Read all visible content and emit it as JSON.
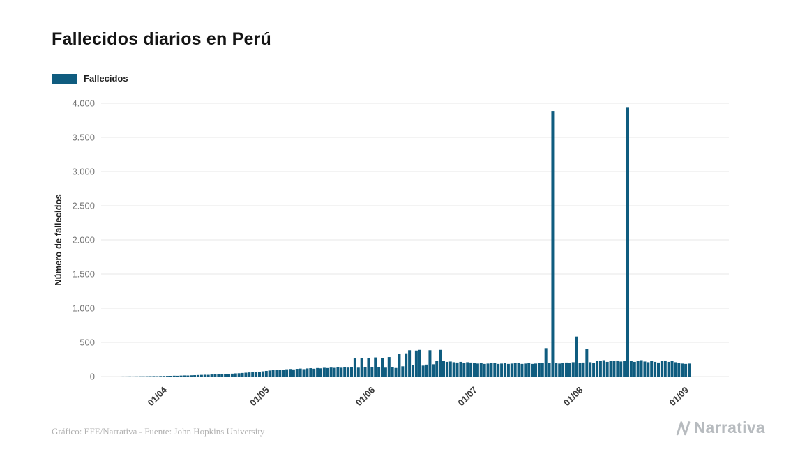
{
  "page": {
    "title": "Fallecidos diarios en Perú",
    "footer_credit": "Gráfico: EFE/Narrativa - Fuente: John Hopkins University",
    "brand": "Narrativa"
  },
  "legend": {
    "label": "Fallecidos",
    "color": "#0f5c7f"
  },
  "chart_data": {
    "type": "bar",
    "title": "Fallecidos diarios en Perú",
    "xlabel": "",
    "ylabel": "Número de fallecidos",
    "ylim": [
      0,
      4000
    ],
    "grid": "horizontal",
    "legend_position": "top-left",
    "bar_color": "#0f5c7f",
    "y_tick_values": [
      0,
      500,
      1000,
      1500,
      2000,
      2500,
      3000,
      3500,
      4000
    ],
    "y_tick_labels": [
      "0",
      "500",
      "1.000",
      "1.500",
      "2.000",
      "2.500",
      "3.000",
      "3.500",
      "4.000"
    ],
    "x_tick_labels": [
      "01/04",
      "01/05",
      "01/06",
      "01/07",
      "01/08",
      "01/09"
    ],
    "x_tick_dates": [
      "2020-04-01",
      "2020-05-01",
      "2020-06-01",
      "2020-07-01",
      "2020-08-01",
      "2020-09-01"
    ],
    "start_date": "2020-03-19",
    "frequency": "daily",
    "series": [
      {
        "name": "Fallecidos",
        "values": [
          1,
          1,
          2,
          1,
          2,
          3,
          3,
          4,
          5,
          6,
          5,
          7,
          8,
          9,
          10,
          12,
          11,
          14,
          16,
          15,
          18,
          20,
          22,
          24,
          26,
          25,
          30,
          32,
          35,
          37,
          34,
          40,
          42,
          46,
          48,
          52,
          56,
          60,
          63,
          66,
          70,
          76,
          82,
          88,
          94,
          98,
          102,
          96,
          106,
          110,
          104,
          112,
          116,
          108,
          118,
          122,
          114,
          124,
          120,
          128,
          124,
          131,
          127,
          133,
          129,
          136,
          131,
          139,
          265,
          130,
          270,
          135,
          275,
          140,
          280,
          140,
          275,
          130,
          285,
          135,
          125,
          330,
          150,
          340,
          385,
          170,
          380,
          390,
          160,
          175,
          385,
          180,
          230,
          390,
          225,
          215,
          220,
          210,
          205,
          215,
          200,
          210,
          205,
          200,
          190,
          195,
          185,
          190,
          200,
          195,
          185,
          190,
          195,
          185,
          190,
          200,
          195,
          185,
          190,
          195,
          185,
          190,
          200,
          195,
          415,
          200,
          3887,
          195,
          190,
          200,
          205,
          195,
          210,
          585,
          200,
          205,
          400,
          210,
          195,
          230,
          225,
          240,
          215,
          230,
          225,
          235,
          220,
          230,
          3935,
          225,
          215,
          230,
          240,
          220,
          210,
          225,
          215,
          205,
          230,
          235,
          215,
          225,
          210,
          195,
          190,
          185,
          190
        ]
      }
    ]
  }
}
